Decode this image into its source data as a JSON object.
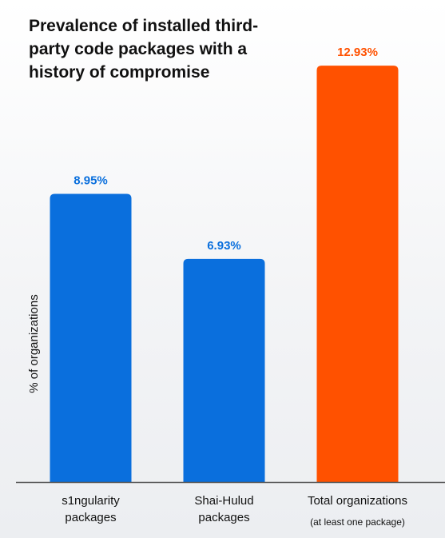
{
  "chart_data": {
    "type": "bar",
    "title_lines": [
      "Prevalence of installed third-",
      "party code packages with a",
      "history of compromise"
    ],
    "ylabel": "% of organizations",
    "xlabel": "",
    "ylim": [
      0,
      14.1
    ],
    "grid": false,
    "categories": [
      {
        "lines": [
          "s1ngularity",
          "packages"
        ],
        "sublabel": ""
      },
      {
        "lines": [
          "Shai-Hulud",
          "packages"
        ],
        "sublabel": ""
      },
      {
        "lines": [
          "Total organizations"
        ],
        "sublabel": "(at least one package)"
      }
    ],
    "values": [
      8.95,
      6.93,
      12.93
    ],
    "value_labels": [
      "8.95%",
      "6.93%",
      "12.93%"
    ],
    "colors": [
      "#0a6fdd",
      "#0a6fdd",
      "#ff5100"
    ],
    "label_colors": [
      "#0a6fdd",
      "#0a6fdd",
      "#ff5100"
    ],
    "axis_color": "#555555"
  }
}
